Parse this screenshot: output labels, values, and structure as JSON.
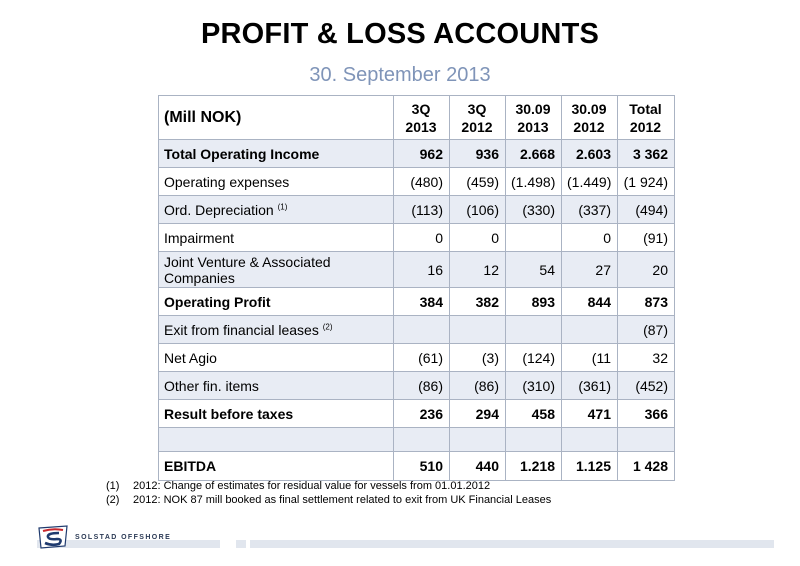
{
  "title": "PROFIT & LOSS ACCOUNTS",
  "subtitle": "30. September 2013",
  "table": {
    "corner": "(Mill NOK)",
    "columns": [
      {
        "line1": "3Q",
        "line2": "2013"
      },
      {
        "line1": "3Q",
        "line2": "2012"
      },
      {
        "line1": "30.09",
        "line2": "2013"
      },
      {
        "line1": "30.09",
        "line2": "2012"
      },
      {
        "line1": "Total",
        "line2": "2012"
      }
    ],
    "rows": [
      {
        "label": "Total Operating Income",
        "values": [
          "962",
          "936",
          "2.668",
          "2.603",
          "3 362"
        ]
      },
      {
        "label": "Operating expenses",
        "values": [
          "(480)",
          "(459)",
          "(1.498)",
          "(1.449)",
          "(1 924)"
        ]
      },
      {
        "label": "Ord. Depreciation",
        "sup": "(1)",
        "values": [
          "(113)",
          "(106)",
          "(330)",
          "(337)",
          "(494)"
        ]
      },
      {
        "label": "Impairment",
        "values": [
          "0",
          "0",
          "",
          "0",
          "(91)"
        ]
      },
      {
        "label": "Joint Venture & Associated Companies",
        "values": [
          "16",
          "12",
          "54",
          "27",
          "20"
        ]
      },
      {
        "label": "Operating Profit",
        "values": [
          "384",
          "382",
          "893",
          "844",
          "873"
        ]
      },
      {
        "label": "Exit from financial leases",
        "sup": "(2)",
        "values": [
          "",
          "",
          "",
          "",
          "(87)"
        ]
      },
      {
        "label": "Net Agio",
        "values": [
          "(61)",
          "(3)",
          "(124)",
          "(11",
          "32"
        ]
      },
      {
        "label": "Other fin. items",
        "values": [
          "(86)",
          "(86)",
          "(310)",
          "(361)",
          "(452)"
        ]
      },
      {
        "label": "Result before taxes",
        "values": [
          "236",
          "294",
          "458",
          "471",
          "366"
        ]
      },
      {
        "label": "",
        "values": [
          "",
          "",
          "",
          "",
          ""
        ]
      },
      {
        "label": "EBITDA",
        "values": [
          "510",
          "440",
          "1.218",
          "1.125",
          "1 428"
        ]
      }
    ]
  },
  "footnotes": [
    {
      "num": "(1)",
      "text": "2012: Change of estimates for residual value for vessels from 01.01.2012"
    },
    {
      "num": "(2)",
      "text": "2012: NOK 87 mill booked as final settlement related to exit from UK Financial Leases"
    }
  ],
  "logo": {
    "text": "SOLSTAD OFFSHORE",
    "icon": "solstad-flag-logo",
    "colors": {
      "navy": "#1f3a6e",
      "red": "#c8282d"
    }
  }
}
